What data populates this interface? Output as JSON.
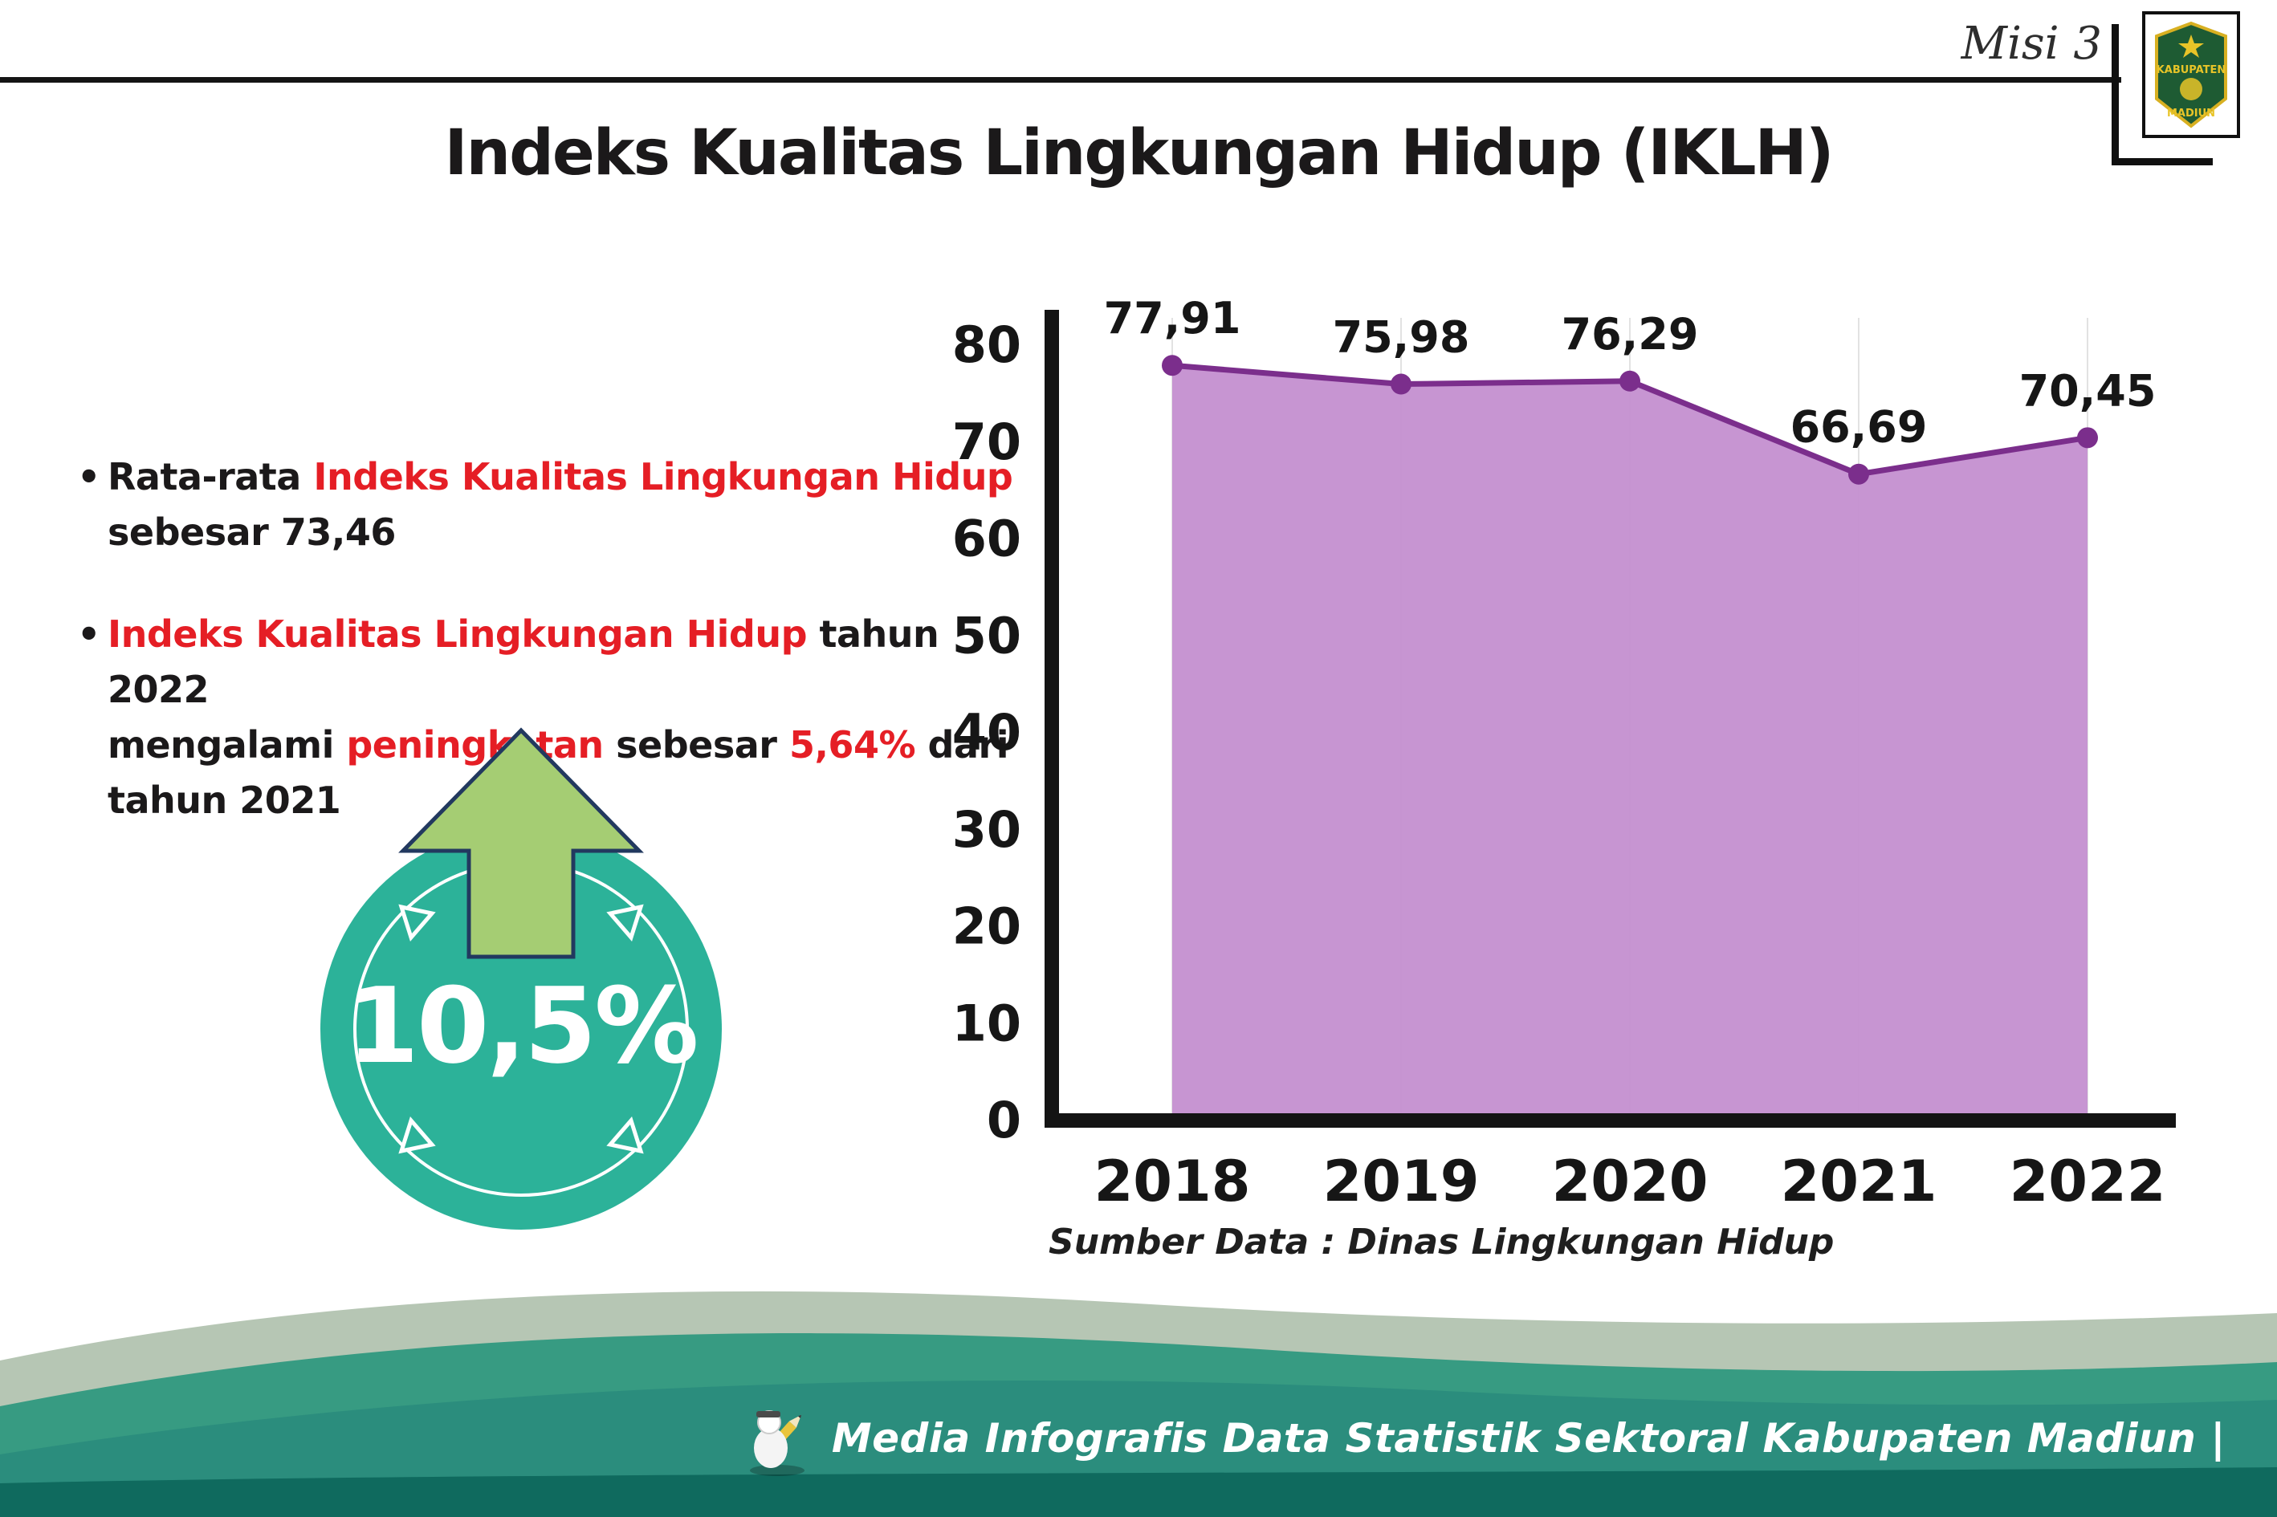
{
  "header": {
    "misi": "Misi 3",
    "title": "Indeks Kualitas Lingkungan Hidup (IKLH)",
    "logo": {
      "top_text": "KABUPATEN",
      "bottom_text": "MADIUN"
    }
  },
  "bullet_marker": "•",
  "bullets": [
    {
      "lines": [
        [
          {
            "t": "Rata-rata ",
            "c": "k"
          },
          {
            "t": "Indeks Kualitas Lingkungan Hidup",
            "c": "r"
          }
        ],
        [
          {
            "t": "sebesar 73,46",
            "c": "k"
          }
        ]
      ]
    },
    {
      "lines": [
        [
          {
            "t": "Indeks Kualitas Lingkungan Hidup",
            "c": "r"
          },
          {
            "t": " tahun 2022",
            "c": "k"
          }
        ],
        [
          {
            "t": "mengalami ",
            "c": "k"
          },
          {
            "t": "peningkatan",
            "c": "r"
          },
          {
            "t": " sebesar ",
            "c": "k"
          },
          {
            "t": "5,64%",
            "c": "r"
          },
          {
            "t": " dari",
            "c": "k"
          }
        ],
        [
          {
            "t": "tahun 2021",
            "c": "k"
          }
        ]
      ]
    }
  ],
  "badge": {
    "value": "10,5%"
  },
  "chart_data": {
    "type": "area",
    "categories": [
      "2018",
      "2019",
      "2020",
      "2021",
      "2022"
    ],
    "values": [
      77.91,
      75.98,
      76.29,
      66.69,
      70.45
    ],
    "value_labels": [
      "77,91",
      "75,98",
      "76,29",
      "66,69",
      "70,45"
    ],
    "title": "",
    "xlabel": "",
    "ylabel": "",
    "ylim": [
      0,
      80
    ],
    "yticks": [
      0,
      10,
      20,
      30,
      40,
      50,
      60,
      70,
      80
    ],
    "grid": "vertical-light",
    "legend": "none",
    "colors": {
      "area": "#c48fd0",
      "line": "#7b2e8c",
      "point": "#7b2e8c"
    },
    "source": "Sumber Data : Dinas Lingkungan Hidup"
  },
  "footer": {
    "caption": "Media Infografis Data Statistik Sektoral Kabupaten Madiun |"
  },
  "colors": {
    "accent_red": "#e51e25",
    "badge_teal": "#2cb299",
    "arrow_green": "#a5cd73",
    "footer_teal": "#2b8d7d",
    "axis_black": "#141414"
  }
}
